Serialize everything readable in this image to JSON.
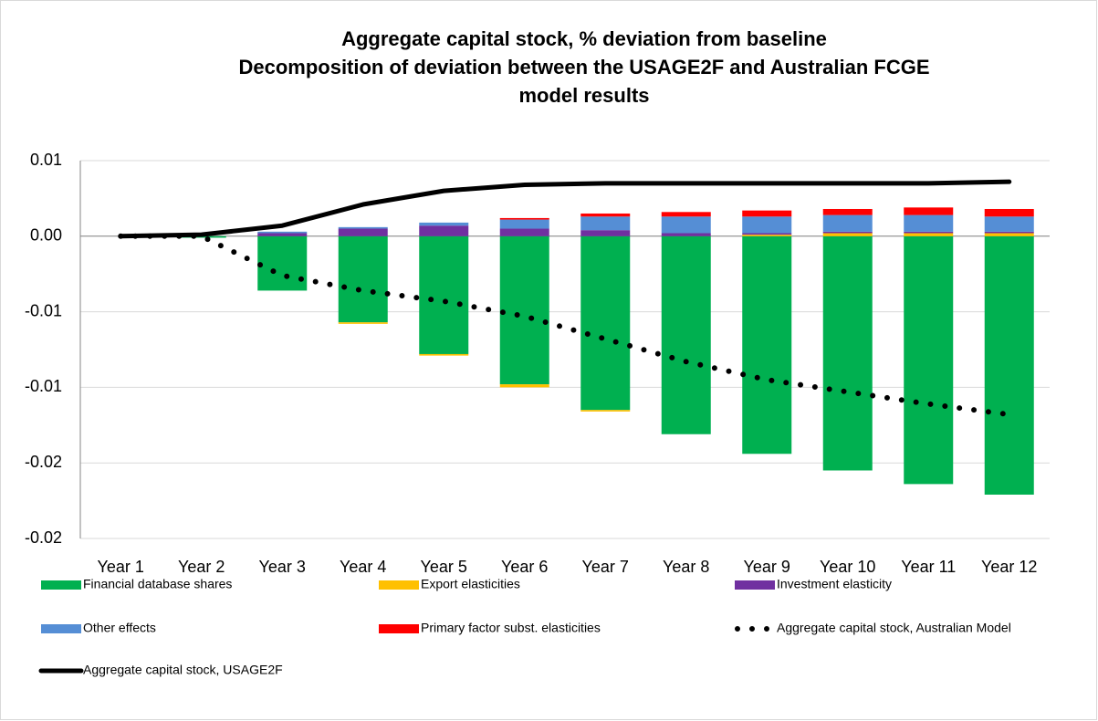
{
  "chart_data": {
    "type": "bar",
    "stacked": true,
    "title": [
      "Aggregate capital stock, % deviation from baseline",
      "Decomposition of deviation between the USAGE2F and Australian FCGE",
      "model results"
    ],
    "categories": [
      "Year 1",
      "Year 2",
      "Year 3",
      "Year 4",
      "Year 5",
      "Year 6",
      "Year 7",
      "Year 8",
      "Year 9",
      "Year 10",
      "Year 11",
      "Year 12"
    ],
    "ylim": [
      -0.02,
      0.005
    ],
    "yticks": [
      {
        "value": 0.005,
        "label": "0.01"
      },
      {
        "value": 0,
        "label": "0.00"
      },
      {
        "value": -0.005,
        "label": "-0.01"
      },
      {
        "value": -0.01,
        "label": "-0.01"
      },
      {
        "value": -0.015,
        "label": "-0.02"
      },
      {
        "value": -0.02,
        "label": "-0.02"
      }
    ],
    "grid": true,
    "legend": "bottom",
    "series": [
      {
        "name": "Financial database shares",
        "type": "bar",
        "color": "#00b050",
        "values": [
          0,
          -0.0001,
          -0.0036,
          -0.0057,
          -0.0078,
          -0.0098,
          -0.0115,
          -0.0131,
          -0.0144,
          -0.0155,
          -0.0164,
          -0.0171
        ]
      },
      {
        "name": "Export elasticities",
        "type": "bar",
        "color": "#ffc000",
        "values": [
          0,
          0,
          0,
          -0.0001,
          -0.0001,
          -0.0002,
          -0.0001,
          0,
          0.0001,
          0.0002,
          0.0002,
          0.0002
        ]
      },
      {
        "name": "Investment elasticity",
        "type": "bar",
        "color": "#7030a0",
        "values": [
          0,
          0,
          0.0002,
          0.0005,
          0.0007,
          0.0005,
          0.0004,
          0.0002,
          0.0001,
          0.0001,
          0.0001,
          0.0001
        ]
      },
      {
        "name": "Other effects",
        "type": "bar",
        "color": "#558ed5",
        "values": [
          0,
          0,
          0.0001,
          0.0001,
          0.0002,
          0.0006,
          0.0009,
          0.0011,
          0.0011,
          0.0011,
          0.0011,
          0.001
        ]
      },
      {
        "name": "Primary factor subst. elasticities",
        "type": "bar",
        "color": "#ff0000",
        "values": [
          0,
          0,
          0,
          0,
          0,
          0.0001,
          0.0002,
          0.0003,
          0.0004,
          0.0004,
          0.0005,
          0.0005
        ]
      },
      {
        "name": "Aggregate capital stock, Australian Model",
        "type": "line",
        "style": "dotted",
        "color": "#000000",
        "values": [
          0,
          0,
          -0.0026,
          -0.0036,
          -0.0043,
          -0.0053,
          -0.0068,
          -0.0083,
          -0.0095,
          -0.0103,
          -0.0111,
          -0.0118
        ]
      },
      {
        "name": "Aggregate capital stock, USAGE2F",
        "type": "line",
        "style": "solid",
        "color": "#000000",
        "values": [
          0,
          0.0001,
          0.0007,
          0.0021,
          0.003,
          0.0034,
          0.0035,
          0.0035,
          0.0035,
          0.0035,
          0.0035,
          0.0036
        ]
      }
    ]
  }
}
